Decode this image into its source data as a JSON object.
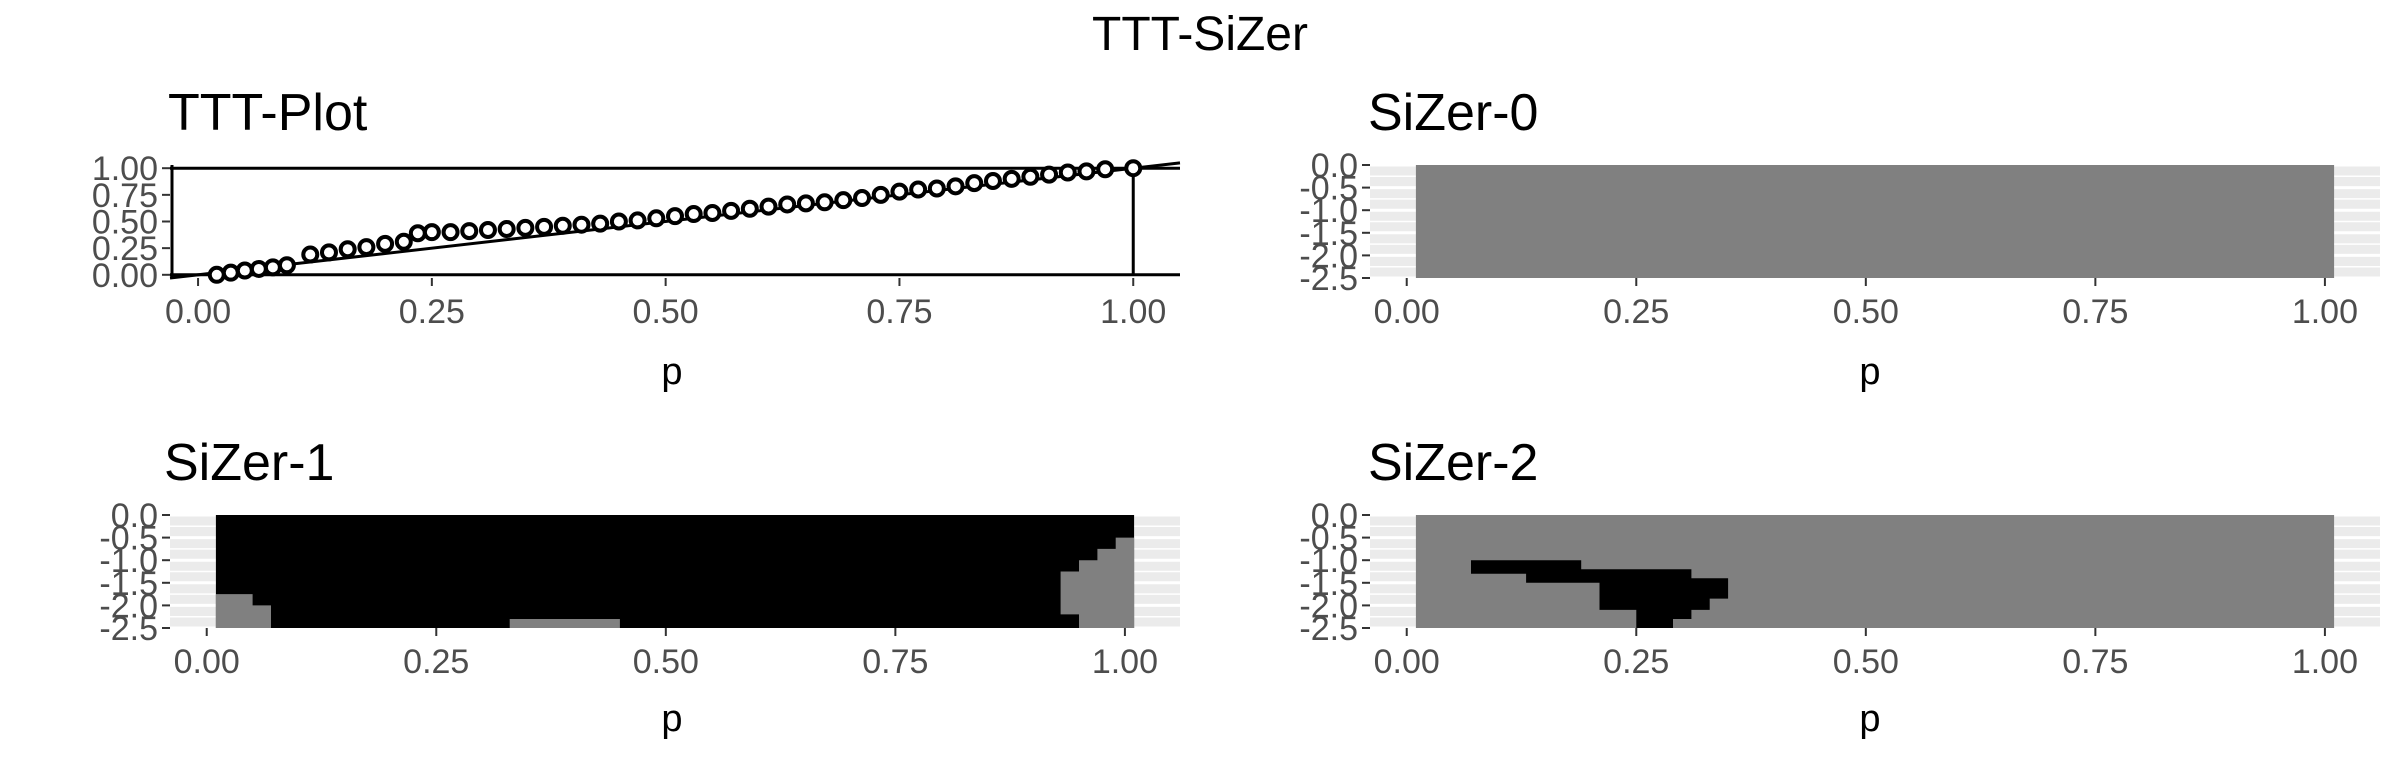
{
  "figure": {
    "title": "TTT-SiZer"
  },
  "panels": [
    {
      "title": "TTT-Plot",
      "type": "scatter",
      "xlabel": "p",
      "x_ticks": [
        "0.00",
        "0.25",
        "0.50",
        "0.75",
        "1.00"
      ],
      "y_ticks": [
        "0.00",
        "0.25",
        "0.50",
        "0.75",
        "1.00"
      ],
      "xlim": [
        -0.03,
        1.05
      ],
      "ylim": [
        -0.03,
        1.03
      ],
      "points": [
        [
          0.02,
          0.0
        ],
        [
          0.035,
          0.02
        ],
        [
          0.05,
          0.04
        ],
        [
          0.065,
          0.055
        ],
        [
          0.08,
          0.07
        ],
        [
          0.095,
          0.09
        ],
        [
          0.12,
          0.19
        ],
        [
          0.14,
          0.21
        ],
        [
          0.16,
          0.24
        ],
        [
          0.18,
          0.26
        ],
        [
          0.2,
          0.29
        ],
        [
          0.22,
          0.31
        ],
        [
          0.235,
          0.39
        ],
        [
          0.25,
          0.4
        ],
        [
          0.27,
          0.4
        ],
        [
          0.29,
          0.41
        ],
        [
          0.31,
          0.42
        ],
        [
          0.33,
          0.43
        ],
        [
          0.35,
          0.44
        ],
        [
          0.37,
          0.45
        ],
        [
          0.39,
          0.46
        ],
        [
          0.41,
          0.47
        ],
        [
          0.43,
          0.48
        ],
        [
          0.45,
          0.5
        ],
        [
          0.47,
          0.51
        ],
        [
          0.49,
          0.53
        ],
        [
          0.51,
          0.55
        ],
        [
          0.53,
          0.57
        ],
        [
          0.55,
          0.58
        ],
        [
          0.57,
          0.6
        ],
        [
          0.59,
          0.62
        ],
        [
          0.61,
          0.64
        ],
        [
          0.63,
          0.66
        ],
        [
          0.65,
          0.67
        ],
        [
          0.67,
          0.68
        ],
        [
          0.69,
          0.7
        ],
        [
          0.71,
          0.72
        ],
        [
          0.73,
          0.75
        ],
        [
          0.75,
          0.78
        ],
        [
          0.77,
          0.8
        ],
        [
          0.79,
          0.81
        ],
        [
          0.81,
          0.83
        ],
        [
          0.83,
          0.86
        ],
        [
          0.85,
          0.88
        ],
        [
          0.87,
          0.9
        ],
        [
          0.89,
          0.92
        ],
        [
          0.91,
          0.94
        ],
        [
          0.93,
          0.96
        ],
        [
          0.95,
          0.97
        ],
        [
          0.97,
          0.99
        ],
        [
          1.0,
          1.0
        ]
      ],
      "reference_line": [
        [
          -0.03,
          -0.03
        ],
        [
          1.05,
          1.05
        ]
      ],
      "hlines": [
        0,
        1
      ],
      "vline": 1
    },
    {
      "title": "SiZer-0",
      "type": "heatmap",
      "xlabel": "p",
      "x_ticks": [
        "0.00",
        "0.25",
        "0.50",
        "0.75",
        "1.00"
      ],
      "y_ticks": [
        "0.0",
        "-0.5",
        "-1.0",
        "-1.5",
        "-2.0",
        "-2.5"
      ],
      "xlim": [
        -0.04,
        1.06
      ],
      "ylim": [
        -2.5,
        0.0
      ],
      "data_xrange": [
        0.01,
        1.01
      ],
      "colors": {
        "gray": "#808080",
        "black": "#000000"
      },
      "regions": [
        {
          "color": "gray",
          "poly": [
            [
              0.01,
              0
            ],
            [
              1.01,
              0
            ],
            [
              1.01,
              -2.5
            ],
            [
              0.01,
              -2.5
            ]
          ]
        }
      ]
    },
    {
      "title": "SiZer-1",
      "type": "heatmap",
      "xlabel": "p",
      "x_ticks": [
        "0.00",
        "0.25",
        "0.50",
        "0.75",
        "1.00"
      ],
      "y_ticks": [
        "0.0",
        "-0.5",
        "-1.0",
        "-1.5",
        "-2.0",
        "-2.5"
      ],
      "xlim": [
        -0.04,
        1.06
      ],
      "ylim": [
        -2.5,
        0.0
      ],
      "data_xrange": [
        0.01,
        1.01
      ],
      "colors": {
        "gray": "#808080",
        "black": "#000000"
      },
      "regions": [
        {
          "color": "black",
          "poly": [
            [
              0.01,
              0
            ],
            [
              1.01,
              0
            ],
            [
              1.01,
              -2.5
            ],
            [
              0.01,
              -2.5
            ]
          ]
        },
        {
          "color": "gray",
          "poly": [
            [
              0.01,
              -1.75
            ],
            [
              0.05,
              -1.75
            ],
            [
              0.05,
              -2.0
            ],
            [
              0.07,
              -2.0
            ],
            [
              0.07,
              -2.5
            ],
            [
              0.01,
              -2.5
            ]
          ]
        },
        {
          "color": "gray",
          "poly": [
            [
              0.33,
              -2.3
            ],
            [
              0.45,
              -2.3
            ],
            [
              0.45,
              -2.5
            ],
            [
              0.33,
              -2.5
            ]
          ]
        },
        {
          "color": "gray",
          "poly": [
            [
              1.01,
              -0.5
            ],
            [
              0.99,
              -0.5
            ],
            [
              0.99,
              -0.75
            ],
            [
              0.97,
              -0.75
            ],
            [
              0.97,
              -1.0
            ],
            [
              0.95,
              -1.0
            ],
            [
              0.95,
              -1.25
            ],
            [
              0.93,
              -1.25
            ],
            [
              0.93,
              -2.2
            ],
            [
              0.95,
              -2.2
            ],
            [
              0.95,
              -2.5
            ],
            [
              1.01,
              -2.5
            ]
          ]
        }
      ]
    },
    {
      "title": "SiZer-2",
      "type": "heatmap",
      "xlabel": "p",
      "x_ticks": [
        "0.00",
        "0.25",
        "0.50",
        "0.75",
        "1.00"
      ],
      "y_ticks": [
        "0.0",
        "-0.5",
        "-1.0",
        "-1.5",
        "-2.0",
        "-2.5"
      ],
      "xlim": [
        -0.04,
        1.06
      ],
      "ylim": [
        -2.5,
        0.0
      ],
      "data_xrange": [
        0.01,
        1.01
      ],
      "colors": {
        "gray": "#808080",
        "black": "#000000"
      },
      "regions": [
        {
          "color": "gray",
          "poly": [
            [
              0.01,
              0
            ],
            [
              1.01,
              0
            ],
            [
              1.01,
              -2.5
            ],
            [
              0.01,
              -2.5
            ]
          ]
        },
        {
          "color": "black",
          "poly": [
            [
              0.07,
              -1.0
            ],
            [
              0.19,
              -1.0
            ],
            [
              0.19,
              -1.2
            ],
            [
              0.31,
              -1.2
            ],
            [
              0.31,
              -1.4
            ],
            [
              0.35,
              -1.4
            ],
            [
              0.35,
              -1.85
            ],
            [
              0.33,
              -1.85
            ],
            [
              0.33,
              -2.1
            ],
            [
              0.31,
              -2.1
            ],
            [
              0.31,
              -2.3
            ],
            [
              0.29,
              -2.3
            ],
            [
              0.29,
              -2.5
            ],
            [
              0.25,
              -2.5
            ],
            [
              0.25,
              -2.1
            ],
            [
              0.21,
              -2.1
            ],
            [
              0.21,
              -1.5
            ],
            [
              0.13,
              -1.5
            ],
            [
              0.13,
              -1.3
            ],
            [
              0.07,
              -1.3
            ]
          ]
        }
      ]
    }
  ],
  "chart_data": [
    {
      "type": "scatter",
      "title": "TTT-Plot",
      "xlabel": "p",
      "ylabel": "",
      "xlim": [
        -0.03,
        1.05
      ],
      "ylim": [
        -0.03,
        1.03
      ],
      "x_ticks": [
        "0.00",
        "0.25",
        "0.50",
        "0.75",
        "1.00"
      ],
      "y_ticks": [
        "0.00",
        "0.25",
        "0.50",
        "0.75",
        "1.00"
      ],
      "grid": false,
      "note_lines": "diagonal reference line y = x, horizontal lines at y = 0 and y = 1, vertical line at x = 1"
    },
    {
      "type": "heatmap",
      "title": "SiZer-0",
      "xlabel": "p",
      "xlim": [
        0.0,
        1.0
      ],
      "ylim": [
        -2.5,
        0.0
      ],
      "x_ticks": [
        "0.00",
        "0.25",
        "0.50",
        "0.75",
        "1.00"
      ],
      "y_ticks": [
        "0.0",
        "-0.5",
        "-1.0",
        "-1.5",
        "-2.0",
        "-2.5"
      ],
      "values": "entire map gray"
    },
    {
      "type": "heatmap",
      "title": "SiZer-1",
      "xlabel": "p",
      "xlim": [
        0.0,
        1.0
      ],
      "ylim": [
        -2.5,
        0.0
      ],
      "x_ticks": [
        "0.00",
        "0.25",
        "0.50",
        "0.75",
        "1.00"
      ],
      "y_ticks": [
        "0.0",
        "-0.5",
        "-1.0",
        "-1.5",
        "-2.0",
        "-2.5"
      ],
      "values": "mostly black; gray at lower-left corner (p<0.07, log-bandwidth below -1.75), gray strip near p 0.33–0.45 at bottom, gray staircase at right edge (p>0.93, log-bandwidth below -0.5)"
    },
    {
      "type": "heatmap",
      "title": "SiZer-2",
      "xlabel": "p",
      "xlim": [
        0.0,
        1.0
      ],
      "ylim": [
        -2.5,
        0.0
      ],
      "x_ticks": [
        "0.00",
        "0.25",
        "0.50",
        "0.75",
        "1.00"
      ],
      "y_ticks": [
        "0.0",
        "-0.5",
        "-1.0",
        "-1.5",
        "-2.0",
        "-2.5"
      ],
      "values": "mostly gray; black wedge spanning p 0.07–0.35 between log-bandwidth -1.0 and -2.5"
    }
  ]
}
